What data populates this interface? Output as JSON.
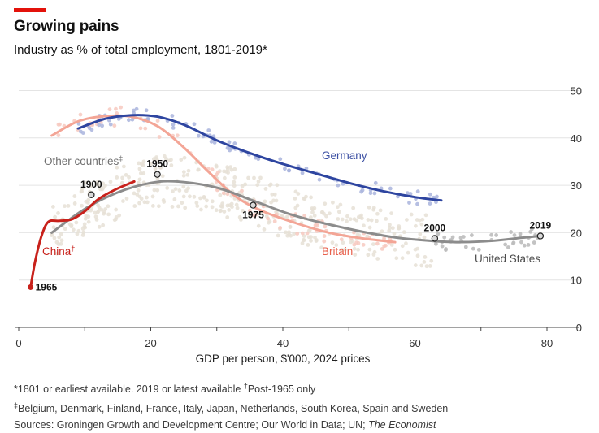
{
  "header": {
    "title": "Growing pains",
    "subtitle": "Industry as % of total employment, 1801-2019*",
    "accent_color": "#e3120b"
  },
  "footnotes": {
    "line1": "*1801 or earliest available. 2019 or latest available ",
    "line1_mark": "†",
    "line1_tail": "Post-1965 only",
    "line2_mark": "‡",
    "line2": "Belgium, Denmark, Finland, France, Italy, Japan, Netherlands, South Korea, Spain and Sweden",
    "line3": "Sources: Groningen Growth and Development Centre; Our World in Data; UN; ",
    "line3_italic": "The Economist"
  },
  "chart_data": {
    "type": "scatter",
    "xlabel": "GDP per person, $'000, 2024 prices",
    "ylabel": "",
    "xlim": [
      0,
      85
    ],
    "ylim": [
      0,
      52
    ],
    "x_ticks": [
      0,
      20,
      40,
      60,
      80
    ],
    "y_ticks": [
      0,
      10,
      20,
      30,
      40,
      50
    ],
    "y_axis_side": "right",
    "grid": "horizontal",
    "series": [
      {
        "name": "Germany",
        "color": "#2e45a0",
        "label_color": "#3b4fa3",
        "points_color": "#a9b4dd",
        "trend": [
          [
            9,
            42
          ],
          [
            13,
            44
          ],
          [
            17,
            44.8
          ],
          [
            21,
            44.5
          ],
          [
            25,
            42.8
          ],
          [
            30,
            39.5
          ],
          [
            35,
            36.8
          ],
          [
            40,
            34.5
          ],
          [
            45,
            32.5
          ],
          [
            50,
            30.5
          ],
          [
            55,
            28.8
          ],
          [
            60,
            27.5
          ],
          [
            64,
            26.8
          ]
        ]
      },
      {
        "name": "Britain",
        "color": "#f3a596",
        "label_color": "#e8614d",
        "points_color": "#f7c9bf",
        "trend": [
          [
            5,
            40.5
          ],
          [
            9,
            43.5
          ],
          [
            13,
            44.6
          ],
          [
            17,
            44.5
          ],
          [
            21,
            42.5
          ],
          [
            25,
            38
          ],
          [
            29,
            32.5
          ],
          [
            33,
            27.5
          ],
          [
            37,
            24.5
          ],
          [
            42,
            22
          ],
          [
            47,
            20
          ],
          [
            52,
            18.8
          ],
          [
            57,
            18
          ]
        ]
      },
      {
        "name": "Other countries",
        "name_mark": "‡",
        "color": "#8c8c8c",
        "label_color": "#6e6e6e",
        "points_color": "#e6e0d6",
        "trend": [
          [
            5,
            20
          ],
          [
            10,
            25
          ],
          [
            15,
            28.5
          ],
          [
            20,
            30.5
          ],
          [
            24,
            30.8
          ],
          [
            30,
            29.5
          ],
          [
            36,
            26.5
          ],
          [
            42,
            23.5
          ],
          [
            50,
            20.8
          ],
          [
            57,
            19
          ],
          [
            63,
            18.2
          ]
        ]
      },
      {
        "name": "United States",
        "color": "#8c8c8c",
        "label_color": "#4d4d4d",
        "points_color": "#bcbcbc",
        "trend": [
          [
            63,
            18.2
          ],
          [
            67,
            18
          ],
          [
            72,
            18.3
          ],
          [
            76,
            18.9
          ],
          [
            79,
            19.3
          ]
        ]
      },
      {
        "name": "China",
        "name_mark": "†",
        "color": "#c8211b",
        "label_color": "#c8211b",
        "trend": [
          [
            1.8,
            8.5
          ],
          [
            2.5,
            14
          ],
          [
            3.5,
            19.5
          ],
          [
            4.5,
            22.3
          ],
          [
            6,
            22.5
          ],
          [
            8,
            22.8
          ],
          [
            10,
            24.5
          ],
          [
            12,
            27
          ],
          [
            14.5,
            29
          ],
          [
            17.5,
            30.8
          ]
        ]
      }
    ],
    "annotations": [
      {
        "label": "1965",
        "x": 1.8,
        "y": 8.5
      },
      {
        "label": "1900",
        "x": 11,
        "y": 28
      },
      {
        "label": "1950",
        "x": 21,
        "y": 32.3
      },
      {
        "label": "1975",
        "x": 35.5,
        "y": 25.8
      },
      {
        "label": "2000",
        "x": 63,
        "y": 18.8
      },
      {
        "label": "2019",
        "x": 79,
        "y": 19.3
      }
    ]
  }
}
